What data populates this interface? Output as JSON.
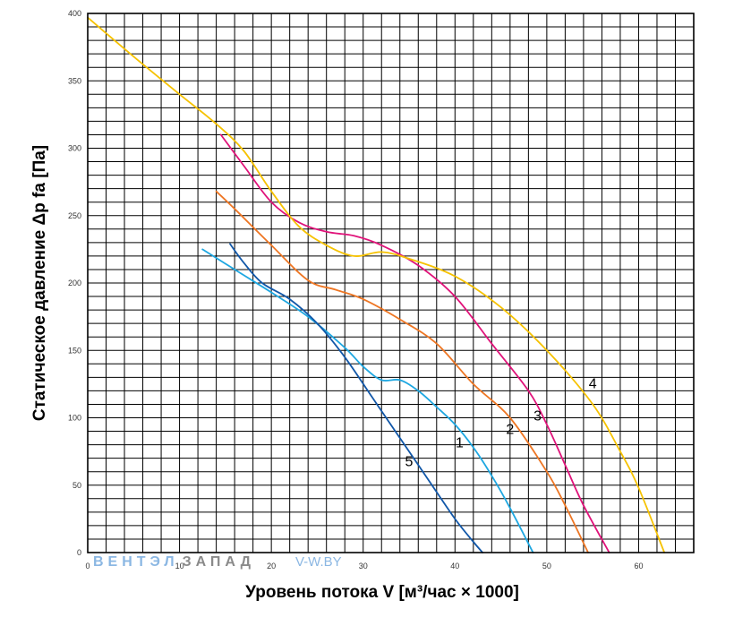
{
  "chart_data": {
    "type": "line",
    "xlabel": "Уровень потока V [м³/час × 1000]",
    "ylabel": "Статическое давление Δp fa [Па]",
    "xlim": [
      0,
      66
    ],
    "ylim": [
      0,
      400
    ],
    "xticks": [
      "0",
      "10",
      "20",
      "30",
      "40",
      "50",
      "60"
    ],
    "yticks": [
      "0",
      "50",
      "100",
      "150",
      "200",
      "250",
      "300",
      "350",
      "400"
    ],
    "grid": true,
    "series": [
      {
        "name": "1",
        "color": "#1ea7e1",
        "label_at": [
          40.5,
          78
        ],
        "x": [
          12.5,
          16,
          20,
          24,
          28,
          30,
          32,
          34,
          36,
          38,
          40,
          42,
          44,
          46,
          48.5
        ],
        "y": [
          225,
          210,
          193,
          175,
          152,
          138,
          128,
          128,
          120,
          108,
          95,
          78,
          57,
          33,
          0
        ]
      },
      {
        "name": "2",
        "color": "#ee7623",
        "label_at": [
          46,
          88
        ],
        "x": [
          14,
          16,
          20,
          24,
          27,
          30,
          34,
          38,
          42,
          46,
          50,
          52,
          54.5
        ],
        "y": [
          268,
          255,
          228,
          202,
          195,
          188,
          173,
          155,
          125,
          100,
          60,
          35,
          0
        ]
      },
      {
        "name": "3",
        "color": "#e0137a",
        "label_at": [
          49,
          98
        ],
        "x": [
          14.5,
          17,
          20,
          23,
          26,
          29,
          32,
          36,
          40,
          44,
          48,
          50,
          52,
          54,
          56.8
        ],
        "y": [
          310,
          287,
          260,
          245,
          238,
          235,
          228,
          213,
          190,
          155,
          120,
          95,
          65,
          35,
          0
        ]
      },
      {
        "name": "4",
        "color": "#f6c200",
        "label_at": [
          55,
          122
        ],
        "x": [
          0,
          5,
          10,
          14,
          17,
          20,
          23,
          26,
          29,
          32,
          35,
          40,
          45,
          50,
          55,
          58,
          60,
          62.8
        ],
        "y": [
          397,
          368,
          340,
          318,
          298,
          268,
          242,
          228,
          220,
          223,
          218,
          205,
          182,
          150,
          110,
          75,
          48,
          0
        ]
      },
      {
        "name": "5",
        "color": "#1157a8",
        "label_at": [
          35,
          64
        ],
        "x": [
          15.5,
          17,
          19,
          22,
          25,
          28,
          31,
          34,
          37,
          40,
          42,
          43
        ],
        "y": [
          229,
          215,
          200,
          188,
          170,
          145,
          115,
          85,
          55,
          25,
          8,
          0
        ]
      }
    ]
  },
  "watermark": {
    "brand_part1": "ВЕНТЭЛ",
    "brand_part2": "ЗАПАД",
    "site": "V-W.BY",
    "color1": "#8bb7e3",
    "color2": "#8a8a8a"
  }
}
